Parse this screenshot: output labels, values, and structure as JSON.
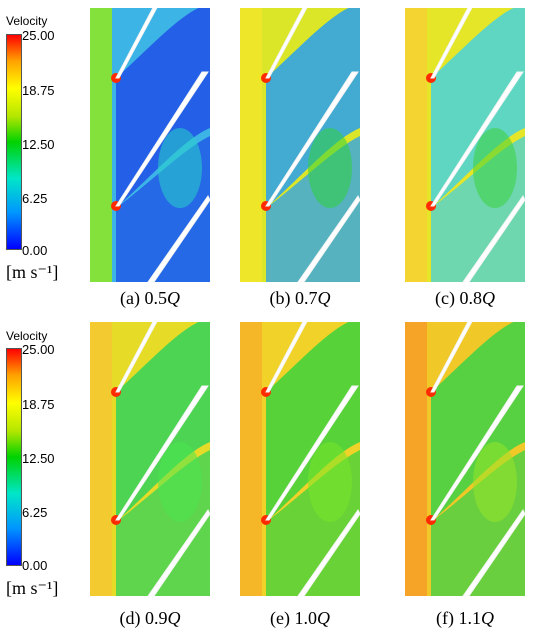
{
  "legend_top": {
    "title": "Velocity",
    "ticks": [
      "25.00",
      "18.75",
      "12.50",
      "6.25",
      "0.00"
    ],
    "unit": "[m s⁻¹]"
  },
  "legend_bottom": {
    "title": "Velocity",
    "ticks": [
      "25.00",
      "18.75",
      "12.50",
      "6.25",
      "0.00"
    ],
    "unit": "[m s⁻¹]"
  },
  "panels": [
    {
      "label": "(a) 0.5",
      "flow_symbol": "Q",
      "bg": "#3cb4e6",
      "main": "#1e50e6",
      "accent": "#28d2c8",
      "edge": "#8ce628"
    },
    {
      "label": "(b) 0.7",
      "flow_symbol": "Q",
      "bg": "#dce628",
      "main": "#28a0f0",
      "accent": "#32d23c",
      "edge": "#f0e628"
    },
    {
      "label": "(c) 0.8",
      "flow_symbol": "Q",
      "bg": "#e6e628",
      "main": "#46d2dc",
      "accent": "#3cd23c",
      "edge": "#f5d232"
    },
    {
      "label": "(d) 0.9",
      "flow_symbol": "Q",
      "bg": "#e6dc28",
      "main": "#32d25a",
      "accent": "#4be650",
      "edge": "#f5c832"
    },
    {
      "label": "(e) 1.0",
      "flow_symbol": "Q",
      "bg": "#f0d228",
      "main": "#3cd23c",
      "accent": "#78e628",
      "edge": "#f5b428"
    },
    {
      "label": "(f) 1.1",
      "flow_symbol": "Q",
      "bg": "#f0c828",
      "main": "#3cd246",
      "accent": "#96e628",
      "edge": "#f5a028"
    }
  ]
}
